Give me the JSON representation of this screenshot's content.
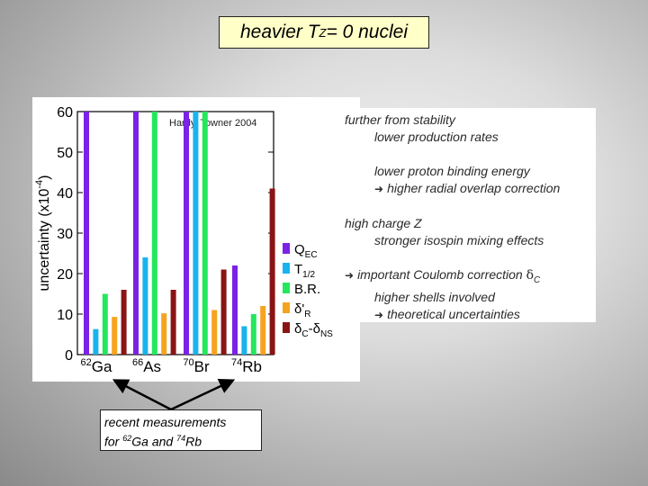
{
  "title": {
    "prefix": "heavier T",
    "sub": "Z",
    "suffix": " = 0 nuclei"
  },
  "chart_data": {
    "type": "bar",
    "annotation": "Hardy, Towner 2004",
    "ylabel": "uncertainty (x10",
    "ylabel_sup": "-4",
    "ylabel_close": ")",
    "ylim": [
      0,
      60
    ],
    "yticks": [
      "0",
      "10",
      "20",
      "30",
      "40",
      "50",
      "60"
    ],
    "categories": [
      {
        "mass": "62",
        "element": "Ga"
      },
      {
        "mass": "66",
        "element": "As"
      },
      {
        "mass": "70",
        "element": "Br"
      },
      {
        "mass": "74",
        "element": "Rb"
      }
    ],
    "series": [
      {
        "name": "Q",
        "sub": "EC",
        "color": "#7b22e6",
        "values": [
          60,
          60,
          60,
          22
        ]
      },
      {
        "name": "T",
        "sub": "1/2",
        "color": "#19b3ef",
        "values": [
          6.3,
          24,
          60,
          7
        ]
      },
      {
        "name": "B.R.",
        "sub": "",
        "color": "#23e85c",
        "values": [
          15,
          60,
          60,
          10
        ]
      },
      {
        "name": "δ'",
        "sub": "R",
        "color": "#f6a31f",
        "values": [
          9.3,
          10.2,
          11,
          12
        ]
      },
      {
        "name": "δ",
        "sub": "C",
        "name2": "-δ",
        "sub2": "NS",
        "color": "#8a1414",
        "values": [
          16,
          16,
          21,
          41
        ]
      }
    ]
  },
  "info": {
    "line1": "further from stability",
    "line2": "lower production rates",
    "line3": "lower proton binding energy",
    "line4": "higher radial overlap correction",
    "line5": "high charge Z",
    "line6": "stronger isospin mixing effects",
    "line7": "important Coulomb correction ",
    "line7_delta": "δ",
    "line7_sub": "C",
    "line8": "higher shells involved",
    "line9": "theoretical uncertainties"
  },
  "note": {
    "line1": "recent measurements",
    "line2_prefix": "for ",
    "mass1": "62",
    "el1": "Ga and ",
    "mass2": "74",
    "el2": "Rb"
  }
}
